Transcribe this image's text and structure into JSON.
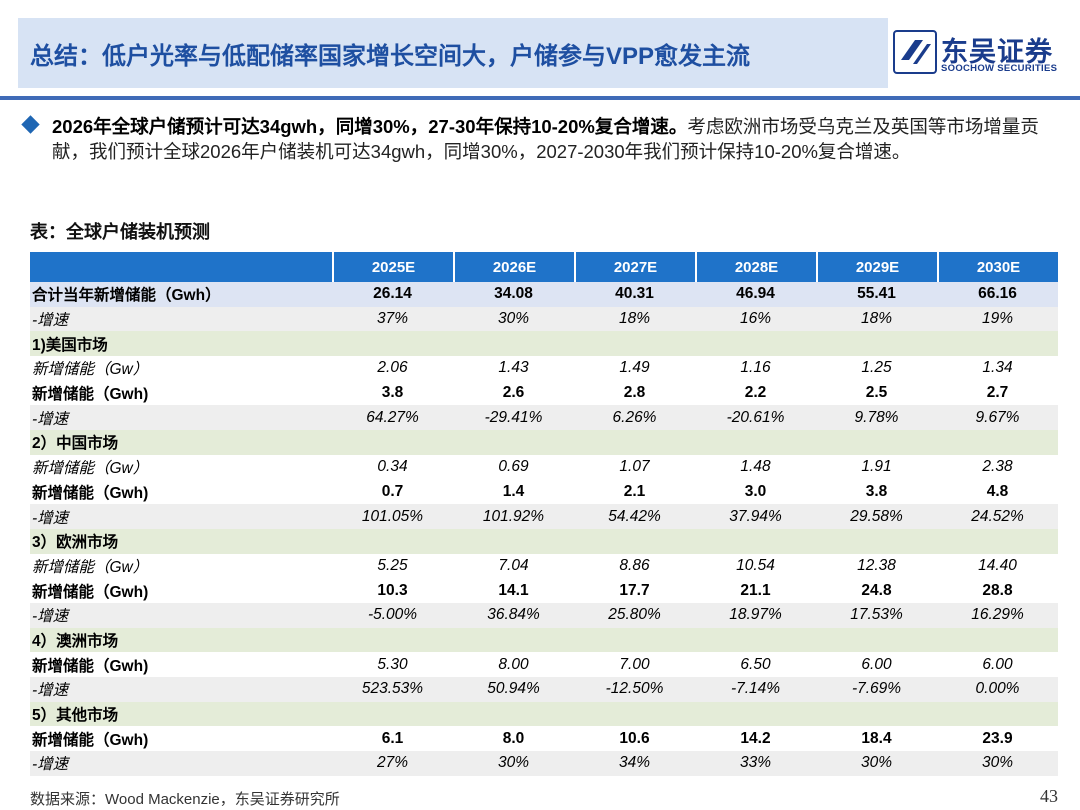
{
  "header": {
    "title": "总结：低户光率与低配储率国家增长空间大，户储参与VPP愈发主流",
    "logo_cn": "东吴证券",
    "logo_en": "SOOCHOW SECURITIES"
  },
  "bullet": {
    "bold": "2026年全球户储预计可达34gwh，同增30%，27-30年保持10-20%复合增速。",
    "normal": "考虑欧洲市场受乌克兰及英国等市场增量贡献，我们预计全球2026年户储装机可达34gwh，同增30%，2027-2030年我们预计保持10-20%复合增速。"
  },
  "table": {
    "title": "表：全球户储装机预测",
    "headers": [
      "",
      "2025E",
      "2026E",
      "2027E",
      "2028E",
      "2029E",
      "2030E"
    ],
    "rows": [
      {
        "label": "合计当年新增储能（Gwh）",
        "values": [
          "26.14",
          "34.08",
          "40.31",
          "46.94",
          "55.41",
          "66.16"
        ]
      },
      {
        "label": "-增速",
        "values": [
          "37%",
          "30%",
          "18%",
          "16%",
          "18%",
          "19%"
        ]
      },
      {
        "label": "1)美国市场",
        "values": [
          "",
          "",
          "",
          "",
          "",
          ""
        ]
      },
      {
        "label": "新增储能（Gw）",
        "values": [
          "2.06",
          "1.43",
          "1.49",
          "1.16",
          "1.25",
          "1.34"
        ]
      },
      {
        "label": "新增储能（Gwh)",
        "values": [
          "3.8",
          "2.6",
          "2.8",
          "2.2",
          "2.5",
          "2.7"
        ]
      },
      {
        "label": "-增速",
        "values": [
          "64.27%",
          "-29.41%",
          "6.26%",
          "-20.61%",
          "9.78%",
          "9.67%"
        ]
      },
      {
        "label": "2）中国市场",
        "values": [
          "",
          "",
          "",
          "",
          "",
          ""
        ]
      },
      {
        "label": "新增储能（Gw）",
        "values": [
          "0.34",
          "0.69",
          "1.07",
          "1.48",
          "1.91",
          "2.38"
        ]
      },
      {
        "label": "新增储能（Gwh)",
        "values": [
          "0.7",
          "1.4",
          "2.1",
          "3.0",
          "3.8",
          "4.8"
        ]
      },
      {
        "label": "-增速",
        "values": [
          "101.05%",
          "101.92%",
          "54.42%",
          "37.94%",
          "29.58%",
          "24.52%"
        ]
      },
      {
        "label": "3）欧洲市场",
        "values": [
          "",
          "",
          "",
          "",
          "",
          ""
        ]
      },
      {
        "label": "新增储能（Gw）",
        "values": [
          "5.25",
          "7.04",
          "8.86",
          "10.54",
          "12.38",
          "14.40"
        ]
      },
      {
        "label": "新增储能（Gwh)",
        "values": [
          "10.3",
          "14.1",
          "17.7",
          "21.1",
          "24.8",
          "28.8"
        ]
      },
      {
        "label": "-增速",
        "values": [
          "-5.00%",
          "36.84%",
          "25.80%",
          "18.97%",
          "17.53%",
          "16.29%"
        ]
      },
      {
        "label": "4）澳洲市场",
        "values": [
          "",
          "",
          "",
          "",
          "",
          ""
        ]
      },
      {
        "label": "新增储能（Gwh)",
        "values": [
          "5.30",
          "8.00",
          "7.00",
          "6.50",
          "6.00",
          "6.00"
        ]
      },
      {
        "label": "-增速",
        "values": [
          "523.53%",
          "50.94%",
          "-12.50%",
          "-7.14%",
          "-7.69%",
          "0.00%"
        ]
      },
      {
        "label": "5）其他市场",
        "values": [
          "",
          "",
          "",
          "",
          "",
          ""
        ]
      },
      {
        "label": "新增储能（Gwh)",
        "values": [
          "6.1",
          "8.0",
          "10.6",
          "14.2",
          "18.4",
          "23.9"
        ]
      },
      {
        "label": "-增速",
        "values": [
          "27%",
          "30%",
          "34%",
          "33%",
          "30%",
          "30%"
        ]
      }
    ]
  },
  "footer": {
    "source": "数据来源：Wood Mackenzie，东吴证券研究所",
    "page": "43"
  },
  "colors": {
    "title_bg": "#d7e3f4",
    "title_text": "#1e4fa1",
    "header_blue": "#1f73c9",
    "green_row": "#e4ecd8",
    "grey_row": "#eeeeee",
    "total_row": "#dde4f3"
  }
}
